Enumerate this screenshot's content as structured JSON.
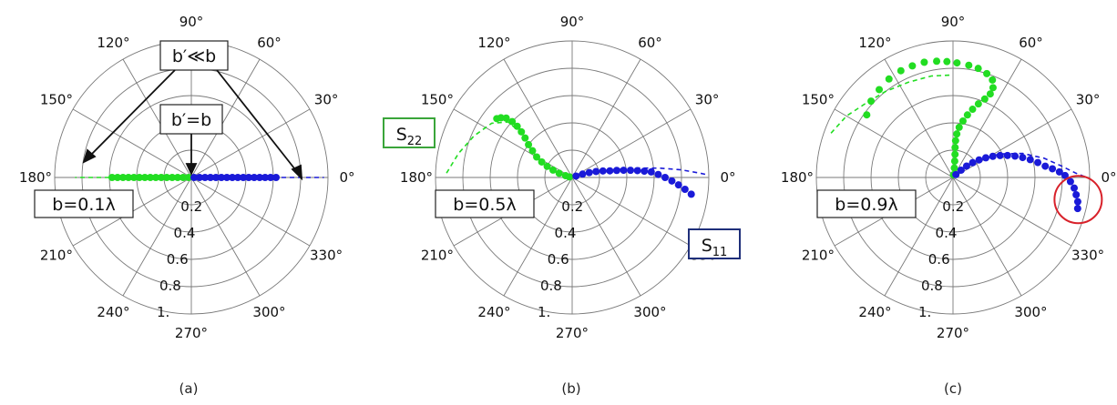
{
  "chart_data": [
    {
      "type": "polar",
      "caption": "(a)",
      "angle_ticks": [
        "0°",
        "30°",
        "60°",
        "90°",
        "120°",
        "150°",
        "180°",
        "210°",
        "240°",
        "270°",
        "300°",
        "330°"
      ],
      "radial_ticks": [
        "0.2",
        "0.4",
        "0.6",
        "0.8",
        "1."
      ],
      "rmax": 1.0,
      "box_labels": [
        "b=0.1λ",
        "b′≪b",
        "b′=b"
      ],
      "highlight": null,
      "series": [
        {
          "color": "#22dd22",
          "style": "dots",
          "points": [
            [
              180,
              0.58
            ],
            [
              180,
              0.54
            ],
            [
              180,
              0.5
            ],
            [
              180,
              0.46
            ],
            [
              180,
              0.42
            ],
            [
              180,
              0.38
            ],
            [
              180,
              0.34
            ],
            [
              180,
              0.3
            ],
            [
              180,
              0.26
            ],
            [
              180,
              0.22
            ],
            [
              180,
              0.18
            ],
            [
              180,
              0.14
            ],
            [
              180,
              0.1
            ],
            [
              180,
              0.06
            ],
            [
              180,
              0.02
            ]
          ]
        },
        {
          "color": "#22dd22",
          "style": "dashed",
          "points": [
            [
              180,
              0.0
            ],
            [
              180,
              0.25
            ],
            [
              180,
              0.5
            ],
            [
              180,
              0.7
            ],
            [
              180,
              0.85
            ]
          ]
        },
        {
          "color": "#1a1ad8",
          "style": "dots",
          "points": [
            [
              0,
              0.02
            ],
            [
              0,
              0.06
            ],
            [
              0,
              0.1
            ],
            [
              0,
              0.14
            ],
            [
              0,
              0.18
            ],
            [
              0,
              0.22
            ],
            [
              0,
              0.26
            ],
            [
              0,
              0.3
            ],
            [
              0,
              0.34
            ],
            [
              0,
              0.38
            ],
            [
              0,
              0.42
            ],
            [
              0,
              0.46
            ],
            [
              0,
              0.5
            ],
            [
              0,
              0.54
            ],
            [
              0,
              0.58
            ],
            [
              0,
              0.62
            ]
          ]
        },
        {
          "color": "#1a1ad8",
          "style": "dashed",
          "points": [
            [
              0,
              0.0
            ],
            [
              0,
              0.3
            ],
            [
              0,
              0.6
            ],
            [
              0,
              0.8
            ],
            [
              0,
              0.97
            ]
          ]
        }
      ]
    },
    {
      "type": "polar",
      "caption": "(b)",
      "angle_ticks": [
        "0°",
        "30°",
        "60°",
        "90°",
        "120°",
        "150°",
        "180°",
        "210°",
        "240°",
        "270°",
        "300°",
        "330°"
      ],
      "radial_ticks": [
        "0.2",
        "0.4",
        "0.6",
        "0.8",
        "1."
      ],
      "rmax": 1.0,
      "box_labels": [
        "b=0.5λ",
        "S22",
        "S11"
      ],
      "highlight": null,
      "series": [
        {
          "color": "#22dd22",
          "style": "dots",
          "points": [
            [
              142,
              0.7
            ],
            [
              140,
              0.68
            ],
            [
              138,
              0.65
            ],
            [
              137,
              0.6
            ],
            [
              137,
              0.55
            ],
            [
              138,
              0.5
            ],
            [
              140,
              0.45
            ],
            [
              143,
              0.4
            ],
            [
              146,
              0.35
            ],
            [
              150,
              0.3
            ],
            [
              153,
              0.25
            ],
            [
              156,
              0.2
            ],
            [
              159,
              0.15
            ],
            [
              162,
              0.1
            ],
            [
              165,
              0.05
            ],
            [
              168,
              0.02
            ]
          ]
        },
        {
          "color": "#22dd22",
          "style": "dashed",
          "points": [
            [
              178,
              0.92
            ],
            [
              168,
              0.85
            ],
            [
              157,
              0.78
            ],
            [
              146,
              0.71
            ],
            [
              139,
              0.62
            ],
            [
              139,
              0.5
            ],
            [
              145,
              0.38
            ],
            [
              154,
              0.25
            ],
            [
              165,
              0.1
            ]
          ]
        },
        {
          "color": "#1a1ad8",
          "style": "dots",
          "points": [
            [
              20,
              0.03
            ],
            [
              18,
              0.08
            ],
            [
              16,
              0.13
            ],
            [
              14,
              0.18
            ],
            [
              12,
              0.23
            ],
            [
              10,
              0.28
            ],
            [
              9,
              0.33
            ],
            [
              8,
              0.38
            ],
            [
              7,
              0.43
            ],
            [
              6,
              0.48
            ],
            [
              5,
              0.53
            ],
            [
              4,
              0.58
            ],
            [
              2,
              0.63
            ],
            [
              0,
              0.68
            ],
            [
              -2,
              0.73
            ],
            [
              -4,
              0.78
            ],
            [
              -6,
              0.83
            ],
            [
              -8,
              0.88
            ]
          ]
        },
        {
          "color": "#1a1ad8",
          "style": "dashed",
          "points": [
            [
              18,
              0.05
            ],
            [
              13,
              0.2
            ],
            [
              10,
              0.35
            ],
            [
              8,
              0.5
            ],
            [
              6,
              0.65
            ],
            [
              4,
              0.8
            ],
            [
              2,
              0.93
            ],
            [
              1,
              1.0
            ]
          ]
        }
      ]
    },
    {
      "type": "polar",
      "caption": "(c)",
      "angle_ticks": [
        "0°",
        "30°",
        "60°",
        "90°",
        "120°",
        "150°",
        "180°",
        "210°",
        "240°",
        "270°",
        "300°",
        "330°"
      ],
      "radial_ticks": [
        "0.2",
        "0.4",
        "0.6",
        "0.8",
        "1."
      ],
      "rmax": 1.0,
      "box_labels": [
        "b=0.9λ"
      ],
      "highlight": {
        "angle": -10,
        "r": 0.93
      },
      "series": [
        {
          "color": "#22dd22",
          "style": "dots",
          "points": [
            [
              80,
              0.02
            ],
            [
              82,
              0.07
            ],
            [
              84,
              0.12
            ],
            [
              85,
              0.17
            ],
            [
              86,
              0.22
            ],
            [
              86,
              0.27
            ],
            [
              85,
              0.32
            ],
            [
              83,
              0.37
            ],
            [
              80,
              0.42
            ],
            [
              77,
              0.47
            ],
            [
              74,
              0.52
            ],
            [
              71,
              0.57
            ],
            [
              68,
              0.62
            ],
            [
              66,
              0.67
            ],
            [
              66,
              0.72
            ],
            [
              68,
              0.77
            ],
            [
              72,
              0.8
            ],
            [
              77,
              0.82
            ],
            [
              82,
              0.83
            ],
            [
              88,
              0.84
            ],
            [
              93,
              0.85
            ],
            [
              98,
              0.86
            ],
            [
              104,
              0.87
            ],
            [
              110,
              0.87
            ],
            [
              116,
              0.87
            ],
            [
              123,
              0.86
            ],
            [
              130,
              0.84
            ],
            [
              137,
              0.82
            ],
            [
              144,
              0.78
            ]
          ]
        },
        {
          "color": "#22dd22",
          "style": "dashed",
          "points": [
            [
              160,
              0.95
            ],
            [
              150,
              0.9
            ],
            [
              140,
              0.84
            ],
            [
              128,
              0.8
            ],
            [
              115,
              0.77
            ],
            [
              102,
              0.76
            ],
            [
              92,
              0.75
            ]
          ]
        },
        {
          "color": "#1a1ad8",
          "style": "dots",
          "points": [
            [
              45,
              0.03
            ],
            [
              42,
              0.08
            ],
            [
              40,
              0.13
            ],
            [
              37,
              0.18
            ],
            [
              34,
              0.23
            ],
            [
              31,
              0.28
            ],
            [
              28,
              0.33
            ],
            [
              25,
              0.38
            ],
            [
              22,
              0.43
            ],
            [
              19,
              0.48
            ],
            [
              16,
              0.53
            ],
            [
              13,
              0.58
            ],
            [
              10,
              0.63
            ],
            [
              7,
              0.68
            ],
            [
              5,
              0.73
            ],
            [
              3,
              0.78
            ],
            [
              1,
              0.82
            ],
            [
              -2,
              0.86
            ],
            [
              -5,
              0.89
            ],
            [
              -8,
              0.91
            ],
            [
              -11,
              0.93
            ],
            [
              -14,
              0.94
            ]
          ]
        },
        {
          "color": "#1a1ad8",
          "style": "dashed",
          "points": [
            [
              43,
              0.05
            ],
            [
              35,
              0.2
            ],
            [
              27,
              0.38
            ],
            [
              19,
              0.54
            ],
            [
              12,
              0.68
            ],
            [
              6,
              0.8
            ],
            [
              2,
              0.9
            ],
            [
              0,
              0.98
            ]
          ]
        }
      ]
    }
  ]
}
